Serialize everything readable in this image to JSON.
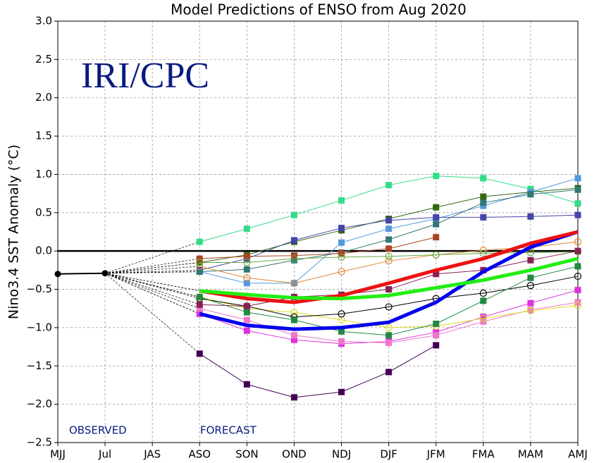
{
  "chart_data": {
    "type": "line",
    "title": "Model Predictions of ENSO from Aug 2020",
    "ylabel": "Nino3.4 SST Anomaly (°C)",
    "annotations": {
      "logo": "IRI/CPC",
      "observed": "OBSERVED",
      "forecast": "FORECAST"
    },
    "categories": [
      "MJJ",
      "Jul",
      "JAS",
      "ASO",
      "SON",
      "OND",
      "NDJ",
      "DJF",
      "JFM",
      "FMA",
      "MAM",
      "AMJ"
    ],
    "ylim": [
      -2.5,
      3.0
    ],
    "yticks": [
      {
        "value": -2.5,
        "label": "−2.5"
      },
      {
        "value": -2.0,
        "label": "−2.0"
      },
      {
        "value": -1.5,
        "label": "−1.5"
      },
      {
        "value": -1.0,
        "label": "−1.0"
      },
      {
        "value": -0.5,
        "label": "−0.5"
      },
      {
        "value": 0,
        "label": "0.0"
      },
      {
        "value": 0.5,
        "label": "0.5"
      },
      {
        "value": 1.0,
        "label": "1.0"
      },
      {
        "value": 1.5,
        "label": "1.5"
      },
      {
        "value": 2.0,
        "label": "2.0"
      },
      {
        "value": 2.5,
        "label": "2.5"
      },
      {
        "value": 3.0,
        "label": "3.0"
      }
    ],
    "grid": true,
    "observed": {
      "color": "#000000",
      "marker": "circle",
      "values": [
        -0.3,
        -0.29
      ]
    },
    "series": [
      {
        "color": "#33dd88",
        "marker": "square",
        "values": [
          null,
          null,
          null,
          0.12,
          0.29,
          0.47,
          0.66,
          0.86,
          0.98,
          0.95,
          0.81,
          0.62
        ]
      },
      {
        "color": "#336611",
        "marker": "square",
        "values": [
          null,
          null,
          null,
          -0.15,
          -0.05,
          0.12,
          0.27,
          0.42,
          0.57,
          0.71,
          0.77,
          0.82
        ]
      },
      {
        "color": "#5599dd",
        "marker": "square",
        "values": [
          null,
          null,
          null,
          -0.27,
          -0.42,
          -0.42,
          0.11,
          0.29,
          0.42,
          0.59,
          0.77,
          0.95
        ]
      },
      {
        "color": "#4444aa",
        "marker": "square",
        "values": [
          null,
          null,
          null,
          -0.25,
          -0.1,
          0.14,
          0.3,
          0.4,
          0.44,
          0.44,
          0.45,
          0.47
        ]
      },
      {
        "color": "#337777",
        "marker": "square",
        "values": [
          null,
          null,
          null,
          -0.27,
          -0.24,
          -0.12,
          -0.02,
          0.15,
          0.35,
          0.63,
          0.74,
          0.8
        ]
      },
      {
        "color": "#aa4422",
        "marker": "square",
        "values": [
          null,
          null,
          null,
          -0.1,
          -0.07,
          -0.06,
          -0.03,
          0.03,
          0.18,
          null,
          null,
          null
        ]
      },
      {
        "color": "#dd8833",
        "marker": "circle",
        "values": [
          null,
          null,
          null,
          -0.2,
          -0.35,
          -0.42,
          -0.27,
          -0.13,
          -0.05,
          0.01,
          0.05,
          0.12
        ]
      },
      {
        "color": "#66aa44",
        "marker": "circle",
        "values": [
          null,
          null,
          null,
          -0.15,
          -0.15,
          -0.1,
          -0.08,
          -0.07,
          -0.05,
          -0.03,
          -0.02,
          -0.01
        ]
      },
      {
        "color": "#440055",
        "marker": "square",
        "values": [
          null,
          null,
          null,
          -1.34,
          -1.74,
          -1.91,
          -1.84,
          -1.58,
          -1.23,
          null,
          null,
          null
        ]
      },
      {
        "color": "#dd33dd",
        "marker": "square",
        "values": [
          null,
          null,
          null,
          -0.82,
          -1.04,
          -1.16,
          -1.21,
          -1.18,
          -1.06,
          -0.86,
          -0.68,
          -0.51
        ]
      },
      {
        "color": "#ee77cc",
        "marker": "square",
        "values": [
          null,
          null,
          null,
          -0.75,
          -0.9,
          -1.1,
          -1.18,
          -1.2,
          -1.1,
          -0.92,
          -0.77,
          -0.67
        ]
      },
      {
        "color": "#dddd22",
        "marker": "circle",
        "values": [
          null,
          null,
          null,
          -0.6,
          -0.75,
          -0.8,
          -0.9,
          -1.0,
          -0.98,
          -0.88,
          -0.78,
          -0.71
        ]
      },
      {
        "color": "#000000",
        "marker": "circle",
        "values": [
          null,
          null,
          null,
          -0.62,
          -0.72,
          -0.86,
          -0.82,
          -0.73,
          -0.62,
          -0.55,
          -0.45,
          -0.33
        ]
      },
      {
        "color": "#228844",
        "marker": "square",
        "values": [
          null,
          null,
          null,
          -0.6,
          -0.8,
          -0.9,
          -1.05,
          -1.1,
          -0.95,
          -0.65,
          -0.35,
          -0.2
        ]
      },
      {
        "color": "#882255",
        "marker": "square",
        "values": [
          null,
          null,
          null,
          -0.7,
          -0.72,
          -0.6,
          -0.57,
          -0.5,
          -0.3,
          -0.25,
          -0.12,
          0.0
        ]
      },
      {
        "color": "#0000ee",
        "bold": true,
        "values": [
          null,
          null,
          null,
          -0.82,
          -0.97,
          -1.02,
          -1.0,
          -0.93,
          -0.67,
          -0.27,
          0.05,
          0.25
        ]
      },
      {
        "color": "#ee1111",
        "bold": true,
        "values": [
          null,
          null,
          null,
          -0.52,
          -0.62,
          -0.67,
          -0.58,
          -0.42,
          -0.25,
          -0.1,
          0.1,
          0.25
        ]
      },
      {
        "color": "#22ee11",
        "bold": true,
        "values": [
          null,
          null,
          null,
          -0.52,
          -0.57,
          -0.61,
          -0.62,
          -0.58,
          -0.48,
          -0.38,
          -0.25,
          -0.1
        ]
      }
    ]
  }
}
